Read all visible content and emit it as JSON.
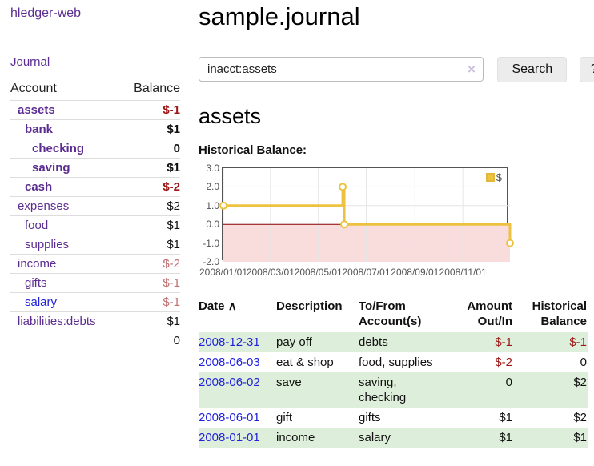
{
  "app": {
    "brand": "hledger-web",
    "nav_journal": "Journal"
  },
  "sidebar": {
    "headers": {
      "account": "Account",
      "balance": "Balance"
    },
    "rows": [
      {
        "account": "assets",
        "balance": "$-1",
        "level": 1,
        "bold": true
      },
      {
        "account": "bank",
        "balance": "$1",
        "level": 2,
        "bold": true
      },
      {
        "account": "checking",
        "balance": "0",
        "level": 3,
        "bold": true
      },
      {
        "account": "saving",
        "balance": "$1",
        "level": 3,
        "bold": true
      },
      {
        "account": "cash",
        "balance": "$-2",
        "level": 2,
        "bold": true
      },
      {
        "account": "expenses",
        "balance": "$2",
        "level": 1,
        "bold": false
      },
      {
        "account": "food",
        "balance": "$1",
        "level": 2,
        "bold": false
      },
      {
        "account": "supplies",
        "balance": "$1",
        "level": 2,
        "bold": false
      },
      {
        "account": "income",
        "balance": "$-2",
        "level": 1,
        "bold": false
      },
      {
        "account": "gifts",
        "balance": "$-1",
        "level": 2,
        "bold": false
      },
      {
        "account": "salary",
        "balance": "$-1",
        "level": 2,
        "bold": false,
        "unvisited": true
      },
      {
        "account": "liabilities:debts",
        "balance": "$1",
        "level": 1,
        "bold": false
      }
    ],
    "total": "0"
  },
  "header": {
    "title": "sample.journal"
  },
  "search": {
    "value": "inacct:assets",
    "clear_icon": "×",
    "button_label": "Search",
    "help_label": "?"
  },
  "account_page": {
    "heading": "assets",
    "chart_label": "Historical Balance:"
  },
  "chart_data": {
    "type": "line",
    "step": true,
    "title": "Historical Balance",
    "series": [
      {
        "name": "$",
        "color": "#edc240",
        "points": [
          {
            "x": "2008/01/01",
            "y": 1
          },
          {
            "x": "2008/06/01",
            "y": 2
          },
          {
            "x": "2008/06/03",
            "y": 0
          },
          {
            "x": "2008/12/31",
            "y": -1
          }
        ]
      }
    ],
    "x_ticks": [
      "2008/01/01",
      "2008/03/01",
      "2008/05/01",
      "2008/07/01",
      "2008/09/01",
      "2008/11/01"
    ],
    "y_ticks": [
      3.0,
      2.0,
      1.0,
      0.0,
      -1.0,
      -2.0
    ],
    "xlim": [
      "2008/01/01",
      "2008/12/31"
    ],
    "ylim": [
      -2,
      3
    ],
    "legend": {
      "label": "$",
      "position": "top-right"
    },
    "grid": true,
    "colors": {
      "line": "#edc240",
      "negative_region": "#f9dcdc",
      "zero_line": "#8b0000",
      "gridline": "#e6e6e6",
      "border": "#545454"
    }
  },
  "register": {
    "headers": {
      "date": "Date",
      "sort_icon": "∧",
      "description": "Description",
      "accounts": "To/From Account(s)",
      "amount": "Amount Out/In",
      "balance": "Historical Balance"
    },
    "rows": [
      {
        "date": "2008-12-31",
        "description": "pay off",
        "accounts": "debts",
        "amount": "$-1",
        "balance": "$-1"
      },
      {
        "date": "2008-06-03",
        "description": "eat & shop",
        "accounts": "food, supplies",
        "amount": "$-2",
        "balance": "0"
      },
      {
        "date": "2008-06-02",
        "description": "save",
        "accounts": "saving,\nchecking",
        "amount": "0",
        "balance": "$2"
      },
      {
        "date": "2008-06-01",
        "description": "gift",
        "accounts": "gifts",
        "amount": "$1",
        "balance": "$2"
      },
      {
        "date": "2008-01-01",
        "description": "income",
        "accounts": "salary",
        "amount": "$1",
        "balance": "$1"
      }
    ]
  }
}
